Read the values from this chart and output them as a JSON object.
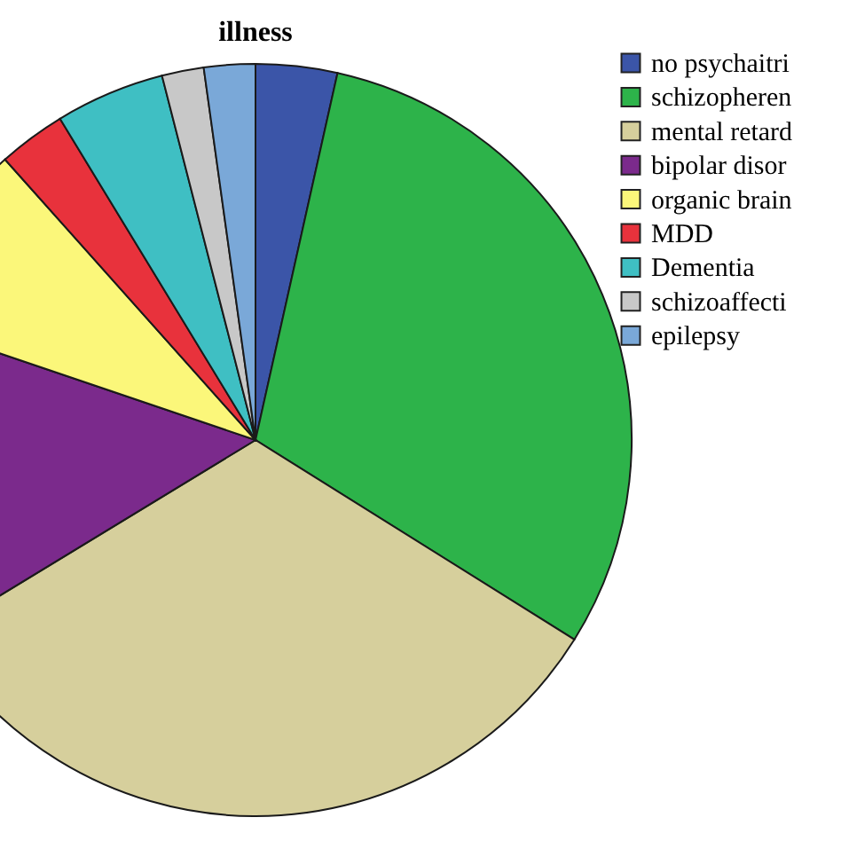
{
  "chart_data": {
    "type": "pie",
    "title": "illness",
    "categories": [
      "no psychaitri",
      "schizopheren",
      "mental retard",
      "bipolar disor",
      "organic brain",
      "MDD",
      "Dementia",
      "schizoaffecti",
      "epilepsy"
    ],
    "values": [
      3.5,
      30.4,
      32.4,
      13.9,
      8.2,
      2.9,
      4.7,
      1.8,
      2.2
    ],
    "colors": [
      "#3b55a8",
      "#2db34a",
      "#d6cf9c",
      "#7b2a8c",
      "#fbf77a",
      "#e8323c",
      "#3fbfc3",
      "#c8c8c8",
      "#7aa8d8"
    ],
    "legend": "top right"
  }
}
